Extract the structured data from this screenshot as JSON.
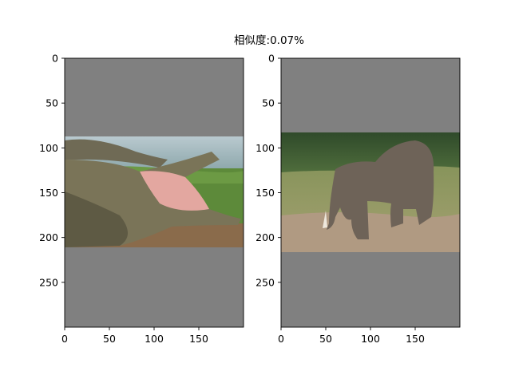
{
  "figure": {
    "suptitle": "相似度:0.07%"
  },
  "chart_data": [
    {
      "type": "image",
      "image": "crocodile",
      "xlim": [
        0,
        200
      ],
      "ylim": [
        300,
        0
      ],
      "xticks": [
        0,
        50,
        100,
        150
      ],
      "yticks": [
        0,
        50,
        100,
        150,
        200,
        250
      ],
      "padding_color": "#808080",
      "photo_rows": [
        87,
        211
      ],
      "grid": false
    },
    {
      "type": "image",
      "image": "elephant",
      "xlim": [
        0,
        200
      ],
      "ylim": [
        300,
        0
      ],
      "xticks": [
        0,
        50,
        100,
        150
      ],
      "yticks": [
        0,
        50,
        100,
        150,
        200,
        250
      ],
      "padding_color": "#808080",
      "photo_rows": [
        83,
        216
      ],
      "grid": false
    }
  ]
}
